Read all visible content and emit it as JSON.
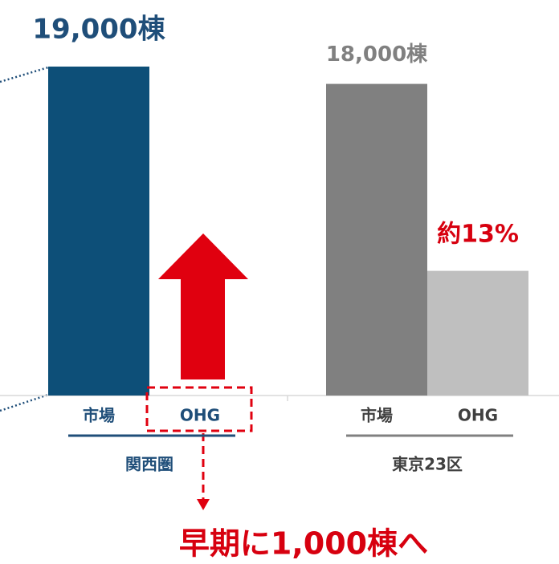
{
  "chart_data": {
    "type": "bar",
    "categories": [
      "関西圏",
      "東京23区"
    ],
    "series": [
      {
        "name": "市場",
        "colors": [
          "#0d4f78",
          "#808080"
        ],
        "values": [
          19000,
          18000
        ],
        "value_labels": [
          "19,000棟",
          "18,000棟"
        ]
      },
      {
        "name": "OHG",
        "colors": [
          "#0d4f78",
          "#bfbfbf"
        ],
        "values": [
          0,
          7200
        ]
      }
    ],
    "group_colors": [
      "#1f4e79",
      "#808080"
    ],
    "ylim": [
      0,
      20000
    ],
    "annotations": [
      "約13%",
      "早期に1,000棟へ"
    ]
  }
}
